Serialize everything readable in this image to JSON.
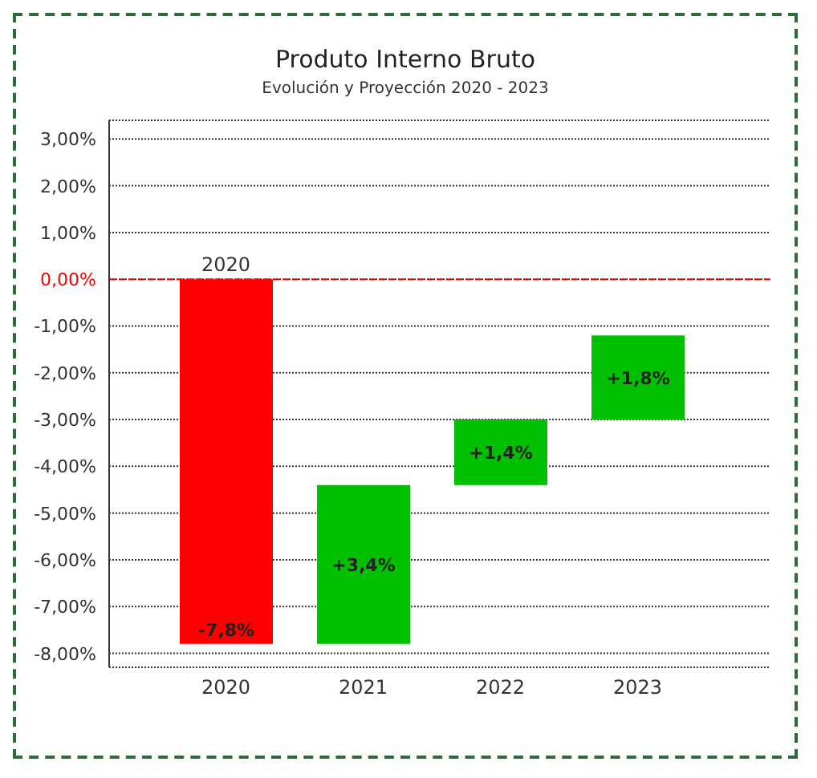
{
  "chart_data": {
    "type": "bar",
    "title": "Produto Interno Bruto",
    "subtitle": "Evolución y Proyección 2020 - 2023",
    "categories": [
      "2020",
      "2021",
      "2022",
      "2023"
    ],
    "values": [
      -7.8,
      3.4,
      1.4,
      1.8
    ],
    "base": [
      0,
      -7.8,
      -4.4,
      -3.0
    ],
    "colors": [
      "#ff0000",
      "#00c000",
      "#00c000",
      "#00c000"
    ],
    "value_labels": [
      "-7,8%",
      "+3,4%",
      "+1,4%",
      "+1,8%"
    ],
    "annotations": [
      {
        "text": "2020",
        "x": "2020",
        "y": 0
      }
    ],
    "ylim": [
      -8.3,
      3.4
    ],
    "yticks": [
      {
        "value": 3,
        "label": "3,00%"
      },
      {
        "value": 2,
        "label": "2,00%"
      },
      {
        "value": 1,
        "label": "1,00%"
      },
      {
        "value": 0,
        "label": "0,00%"
      },
      {
        "value": -1,
        "label": "-1,00%"
      },
      {
        "value": -2,
        "label": "-2,00%"
      },
      {
        "value": -3,
        "label": "-3,00%"
      },
      {
        "value": -4,
        "label": "-4,00%"
      },
      {
        "value": -5,
        "label": "-5,00%"
      },
      {
        "value": -6,
        "label": "-6,00%"
      },
      {
        "value": -7,
        "label": "-7,00%"
      },
      {
        "value": -8,
        "label": "-8,00%"
      }
    ],
    "ref_lines": [
      {
        "axis": "y",
        "value": 0,
        "color": "#ff0000",
        "line_style": "dashed"
      }
    ],
    "grid": "y"
  }
}
